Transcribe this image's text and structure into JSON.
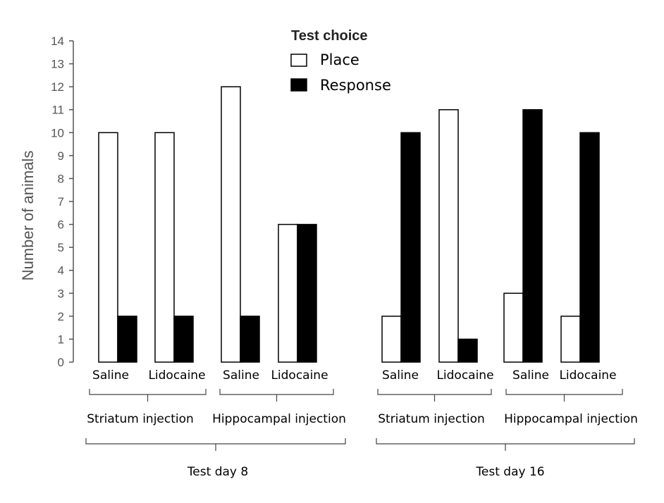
{
  "chart_data": {
    "type": "bar",
    "ylabel": "Number of animals",
    "ylim": [
      0,
      14
    ],
    "yticks": [
      "0",
      "1",
      "2",
      "3",
      "4",
      "5",
      "6",
      "7",
      "8",
      "9",
      "10",
      "11",
      "12",
      "13",
      "14"
    ],
    "legend": {
      "title": "Test choice",
      "placement": "top-center",
      "entries": [
        {
          "name": "Place",
          "color": "#ffffff"
        },
        {
          "name": "Response",
          "color": "#000000"
        }
      ]
    },
    "series": [
      {
        "name": "Place",
        "color": "#ffffff"
      },
      {
        "name": "Response",
        "color": "#000000"
      }
    ],
    "groups": [
      {
        "label": "Saline",
        "injection": 0,
        "day": 0,
        "values": [
          10,
          2
        ]
      },
      {
        "label": "Lidocaine",
        "injection": 0,
        "day": 0,
        "values": [
          10,
          2
        ]
      },
      {
        "label": "Saline",
        "injection": 1,
        "day": 0,
        "values": [
          12,
          2
        ]
      },
      {
        "label": "Lidocaine",
        "injection": 1,
        "day": 0,
        "values": [
          6,
          6
        ]
      },
      {
        "label": "Saline",
        "injection": 2,
        "day": 1,
        "values": [
          2,
          10
        ]
      },
      {
        "label": "Lidocaine",
        "injection": 2,
        "day": 1,
        "values": [
          11,
          1
        ]
      },
      {
        "label": "Saline",
        "injection": 3,
        "day": 1,
        "values": [
          3,
          11
        ]
      },
      {
        "label": "Lidocaine",
        "injection": 3,
        "day": 1,
        "values": [
          2,
          10
        ]
      }
    ],
    "injections": [
      "Striatum injection",
      "Hippocampal injection",
      "Striatum injection",
      "Hippocampal injection"
    ],
    "days": [
      "Test day 8",
      "Test day 16"
    ]
  }
}
